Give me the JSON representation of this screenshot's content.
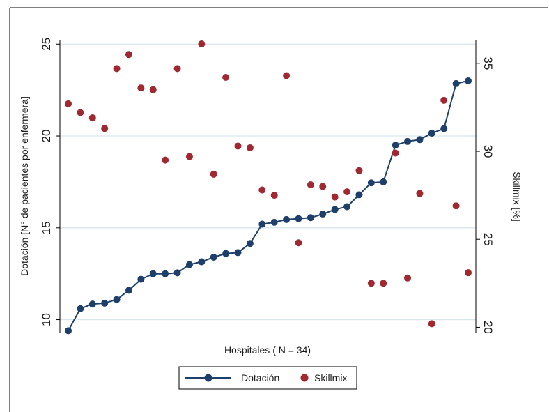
{
  "chart_data": {
    "type": "line+scatter",
    "xlabel": "Hospitales ( N = 34)",
    "ylabel_left": "Dotación [N° de pacientes por enfermera]",
    "ylabel_right": "Skillmix [%]",
    "ylim_left": [
      9.3,
      25.2
    ],
    "ylim_right": [
      19.7,
      36.3
    ],
    "yticks_left": [
      10,
      15,
      20,
      25
    ],
    "yticks_right": [
      20,
      25,
      30,
      35
    ],
    "grid": true,
    "legend_position": "bottom",
    "x": [
      1,
      2,
      3,
      4,
      5,
      6,
      7,
      8,
      9,
      10,
      11,
      12,
      13,
      14,
      15,
      16,
      17,
      18,
      19,
      20,
      21,
      22,
      23,
      24,
      25,
      26,
      27,
      28,
      29,
      30,
      31,
      32,
      33,
      34
    ],
    "series": [
      {
        "name": "Dotación",
        "style": "line-markers",
        "axis": "left",
        "color": "#1f3f6b",
        "values": [
          9.4,
          10.6,
          10.85,
          10.9,
          11.1,
          11.6,
          12.2,
          12.5,
          12.5,
          12.55,
          13,
          13.15,
          13.4,
          13.6,
          13.65,
          14.15,
          15.2,
          15.3,
          15.45,
          15.5,
          15.55,
          15.75,
          16.0,
          16.15,
          16.8,
          17.45,
          17.5,
          19.5,
          19.7,
          19.8,
          20.15,
          20.4,
          22.85,
          23.0
        ]
      },
      {
        "name": "Skillmix",
        "style": "markers",
        "axis": "right",
        "color": "#a02830",
        "values": [
          32.7,
          32.2,
          31.9,
          31.3,
          34.7,
          35.5,
          33.6,
          33.5,
          29.5,
          34.7,
          29.7,
          36.1,
          28.7,
          34.2,
          30.3,
          30.2,
          27.8,
          27.5,
          34.3,
          24.8,
          28.1,
          28.0,
          27.4,
          27.7,
          28.9,
          22.5,
          22.5,
          29.9,
          22.8,
          27.6,
          20.2,
          32.9,
          26.9,
          23.1
        ]
      }
    ]
  }
}
